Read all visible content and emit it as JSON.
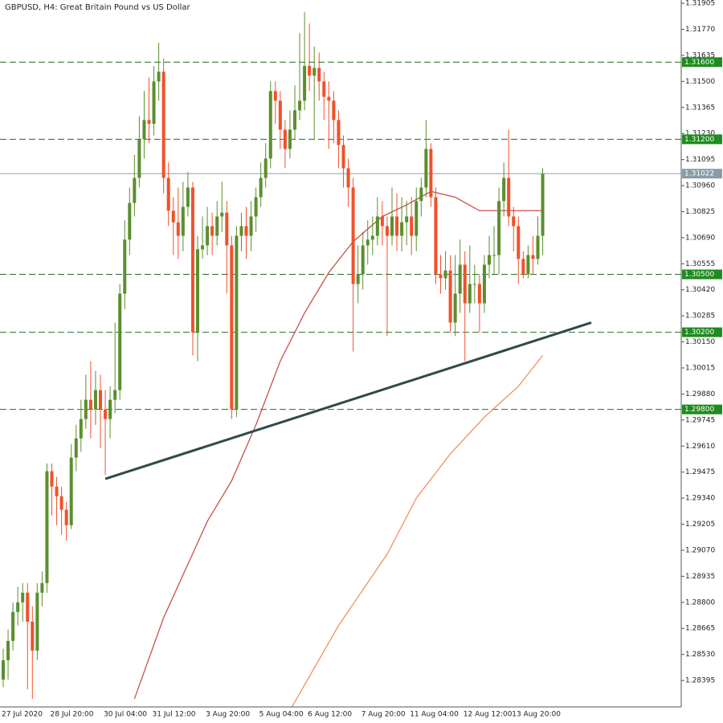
{
  "chart_data": {
    "type": "candlestick",
    "title": "GBPUSD, H4:  Great Britain Pound vs US Dollar",
    "categories": [
      "27 Jul 2020",
      null,
      null,
      null,
      null,
      null,
      null,
      null,
      null,
      null,
      "28 Jul 20:00",
      null,
      null,
      null,
      null,
      null,
      null,
      null,
      null,
      null,
      null,
      "30 Jul 04:00",
      null,
      null,
      null,
      null,
      null,
      null,
      null,
      null,
      null,
      "31 Jul 12:00",
      null,
      null,
      null,
      null,
      null,
      null,
      null,
      null,
      null,
      null,
      "3 Aug 20:00",
      null,
      null,
      null,
      null,
      null,
      null,
      null,
      null,
      null,
      null,
      "5 Aug 04:00",
      null,
      null,
      null,
      null,
      null,
      null,
      null,
      null,
      null,
      "6 Aug 12:00",
      null,
      null,
      null,
      null,
      null,
      null,
      null,
      null,
      null,
      null,
      "7 Aug 20:00",
      null,
      null,
      null,
      null,
      null,
      null,
      null,
      null,
      null,
      "11 Aug 04:00",
      null,
      null,
      null,
      null,
      null,
      null,
      null,
      null,
      null,
      null,
      "12 Aug 12:00",
      null,
      null,
      null,
      null,
      null,
      null,
      null,
      null,
      null,
      "13 Aug 20:00",
      null,
      null,
      null,
      null,
      null,
      null
    ],
    "open": [
      1.284,
      1.285,
      1.286,
      1.2875,
      1.288,
      1.2885,
      1.287,
      1.2855,
      1.2885,
      1.289,
      1.2948,
      1.294,
      1.2935,
      1.2928,
      1.292,
      1.2955,
      1.2965,
      1.2975,
      1.2985,
      1.298,
      1.299,
      1.298,
      1.2975,
      1.2985,
      1.299,
      1.304,
      1.3068,
      1.3087,
      1.31,
      1.312,
      1.313,
      1.3128,
      1.315,
      1.3155,
      1.31,
      1.3083,
      1.3077,
      1.307,
      1.3085,
      1.3095,
      1.302,
      1.3063,
      1.3065,
      1.3075,
      1.307,
      1.308,
      1.3082,
      1.3065,
      1.298,
      1.307,
      1.3075,
      1.307,
      1.308,
      1.309,
      1.31,
      1.311,
      1.3145,
      1.314,
      1.3125,
      1.3115,
      1.3125,
      1.3135,
      1.314,
      1.3158,
      1.3153,
      1.3157,
      1.315,
      1.3142,
      1.314,
      1.313,
      1.3117,
      1.3105,
      1.3095,
      1.3045,
      1.305,
      1.3065,
      1.3068,
      1.307,
      1.308,
      1.3075,
      1.307,
      1.308,
      1.307,
      1.3077,
      1.308,
      1.307,
      1.3088,
      1.3095,
      1.3115,
      1.309,
      1.305,
      1.3048,
      1.3052,
      1.3025,
      1.304,
      1.3055,
      1.3035,
      1.3045,
      1.3045,
      1.3035,
      1.3055,
      1.306,
      1.306,
      1.3088,
      1.31,
      1.308,
      1.3075,
      1.3058,
      1.305,
      1.306,
      1.3058,
      1.307
    ],
    "high": [
      1.2856,
      1.2866,
      1.288,
      1.2888,
      1.289,
      1.289,
      1.2878,
      1.289,
      1.2896,
      1.2952,
      1.2952,
      1.2945,
      1.294,
      1.2932,
      1.2962,
      1.2972,
      1.2985,
      1.2998,
      1.3005,
      1.3,
      1.2998,
      1.299,
      1.2992,
      1.3025,
      1.3045,
      1.3078,
      1.3095,
      1.3112,
      1.3132,
      1.3145,
      1.3152,
      1.3158,
      1.317,
      1.3162,
      1.3108,
      1.309,
      1.3095,
      1.3098,
      1.3103,
      1.3098,
      1.307,
      1.308,
      1.3085,
      1.3082,
      1.3088,
      1.3098,
      1.3088,
      1.307,
      1.3075,
      1.3082,
      1.3085,
      1.3088,
      1.3095,
      1.3108,
      1.3118,
      1.315,
      1.315,
      1.3145,
      1.313,
      1.3135,
      1.3148,
      1.3175,
      1.3186,
      1.318,
      1.3168,
      1.3165,
      1.3155,
      1.315,
      1.3145,
      1.3135,
      1.3122,
      1.311,
      1.31,
      1.3065,
      1.3072,
      1.3078,
      1.308,
      1.309,
      1.3088,
      1.308,
      1.3095,
      1.3092,
      1.309,
      1.3088,
      1.309,
      1.3095,
      1.31,
      1.313,
      1.3118,
      1.3095,
      1.306,
      1.3062,
      1.306,
      1.306,
      1.3068,
      1.3062,
      1.3065,
      1.3055,
      1.305,
      1.306,
      1.307,
      1.3075,
      1.3095,
      1.3108,
      1.3125,
      1.3085,
      1.308,
      1.3062,
      1.3065,
      1.307,
      1.308,
      1.3105
    ],
    "low": [
      1.2836,
      1.284,
      1.2855,
      1.2868,
      1.287,
      1.2835,
      1.283,
      1.285,
      1.2878,
      1.2885,
      1.2925,
      1.292,
      1.2915,
      1.2912,
      1.2918,
      1.2948,
      1.2958,
      1.297,
      1.2965,
      1.2972,
      1.296,
      1.2946,
      1.2965,
      1.2978,
      1.2985,
      1.3032,
      1.306,
      1.308,
      1.3095,
      1.311,
      1.3118,
      1.3122,
      1.314,
      1.3092,
      1.3075,
      1.306,
      1.3058,
      1.3062,
      1.308,
      1.3008,
      1.3005,
      1.3058,
      1.306,
      1.306,
      1.3065,
      1.3072,
      1.304,
      1.2975,
      1.2976,
      1.3062,
      1.3058,
      1.3062,
      1.3072,
      1.3085,
      1.3095,
      1.3105,
      1.3128,
      1.3115,
      1.3105,
      1.311,
      1.312,
      1.313,
      1.3135,
      1.3145,
      1.312,
      1.314,
      1.313,
      1.3115,
      1.3118,
      1.3105,
      1.3095,
      1.3085,
      1.301,
      1.3035,
      1.3042,
      1.3055,
      1.306,
      1.3065,
      1.3065,
      1.3018,
      1.3065,
      1.3062,
      1.3062,
      1.3065,
      1.306,
      1.3062,
      1.308,
      1.309,
      1.3085,
      1.3045,
      1.304,
      1.3042,
      1.302,
      1.3018,
      1.303,
      1.3005,
      1.303,
      1.3035,
      1.302,
      1.303,
      1.3048,
      1.305,
      1.305,
      1.308,
      1.3075,
      1.3062,
      1.3045,
      1.3048,
      1.3048,
      1.305,
      1.3055,
      1.306
    ],
    "close": [
      1.285,
      1.286,
      1.2875,
      1.288,
      1.2885,
      1.287,
      1.2855,
      1.2885,
      1.289,
      1.2948,
      1.294,
      1.2935,
      1.2928,
      1.292,
      1.2955,
      1.2965,
      1.2975,
      1.2985,
      1.298,
      1.299,
      1.298,
      1.2975,
      1.2985,
      1.299,
      1.304,
      1.3068,
      1.3087,
      1.31,
      1.312,
      1.313,
      1.3128,
      1.315,
      1.3155,
      1.31,
      1.3083,
      1.3077,
      1.307,
      1.3085,
      1.3095,
      1.302,
      1.3063,
      1.3065,
      1.3075,
      1.307,
      1.308,
      1.3082,
      1.3065,
      1.298,
      1.307,
      1.3075,
      1.307,
      1.308,
      1.309,
      1.31,
      1.311,
      1.3145,
      1.314,
      1.3125,
      1.3115,
      1.3125,
      1.3135,
      1.314,
      1.3158,
      1.3153,
      1.3157,
      1.315,
      1.3142,
      1.314,
      1.313,
      1.3117,
      1.3105,
      1.3095,
      1.3045,
      1.305,
      1.3065,
      1.3068,
      1.307,
      1.308,
      1.3075,
      1.307,
      1.308,
      1.307,
      1.3077,
      1.308,
      1.307,
      1.3088,
      1.3095,
      1.3115,
      1.309,
      1.305,
      1.3048,
      1.3052,
      1.3025,
      1.304,
      1.3055,
      1.3035,
      1.3045,
      1.3045,
      1.3035,
      1.3055,
      1.306,
      1.306,
      1.3088,
      1.31,
      1.308,
      1.3075,
      1.3058,
      1.305,
      1.306,
      1.3058,
      1.307,
      1.3102
    ],
    "up_color": "#5a8f2e",
    "down_color": "#f0512b",
    "ylim": [
      1.28258,
      1.31922
    ],
    "yticks": [
      1.31905,
      {
        "value": 1.3177,
        "label": "1.31770"
      },
      1.31635,
      {
        "value": 1.315,
        "label": "1.31500"
      },
      1.31365,
      {
        "value": 1.3123,
        "label": "1.31230"
      },
      1.31095,
      {
        "value": 1.3096,
        "label": "1.30960"
      },
      1.30825,
      {
        "value": 1.3069,
        "label": "1.30690"
      },
      1.30555,
      {
        "value": 1.3042,
        "label": "1.30420"
      },
      1.30285,
      {
        "value": 1.3015,
        "label": "1.30150"
      },
      1.30015,
      {
        "value": 1.2988,
        "label": "1.29880"
      },
      1.29745,
      {
        "value": 1.2961,
        "label": "1.29610"
      },
      1.29475,
      {
        "value": 1.2934,
        "label": "1.29340"
      },
      1.29205,
      {
        "value": 1.2907,
        "label": "1.29070"
      },
      1.28935,
      {
        "value": 1.288,
        "label": "1.28800"
      },
      1.28665,
      {
        "value": 1.2853,
        "label": "1.28530"
      },
      1.28395
    ],
    "levels": [
      {
        "value": 1.316,
        "label": "1.31600"
      },
      {
        "value": 1.312,
        "label": "1.31200"
      },
      {
        "value": 1.305,
        "label": "1.30500"
      },
      {
        "value": 1.302,
        "label": "1.30200"
      },
      {
        "value": 1.298,
        "label": "1.29800"
      }
    ],
    "level_color": "#2f6a2f",
    "level_label_color": "#1e8c1e",
    "current_price": 1.31022,
    "current_price_color": "#8a9ca8",
    "trendline": {
      "color": "#2f4a4a",
      "x": [
        21,
        121
      ],
      "values": [
        1.2944,
        1.3025
      ]
    },
    "moving_averages": [
      {
        "color": "#c9504a",
        "x": [
          27,
          33,
          42,
          47,
          52,
          57,
          62,
          67,
          72,
          78,
          83,
          88,
          93,
          98,
          103,
          111
        ],
        "values": [
          1.283,
          1.2872,
          1.2922,
          1.2943,
          1.2972,
          1.3005,
          1.303,
          1.3051,
          1.3067,
          1.308,
          1.3086,
          1.3093,
          1.309,
          1.3083,
          1.3083,
          1.3083
        ]
      },
      {
        "color": "#f4905a",
        "x": [
          59,
          69,
          79,
          85,
          92,
          99,
          106,
          111
        ],
        "values": [
          1.2824,
          1.2868,
          1.2905,
          1.2934,
          1.2957,
          1.2976,
          1.2992,
          1.3008
        ]
      }
    ]
  }
}
